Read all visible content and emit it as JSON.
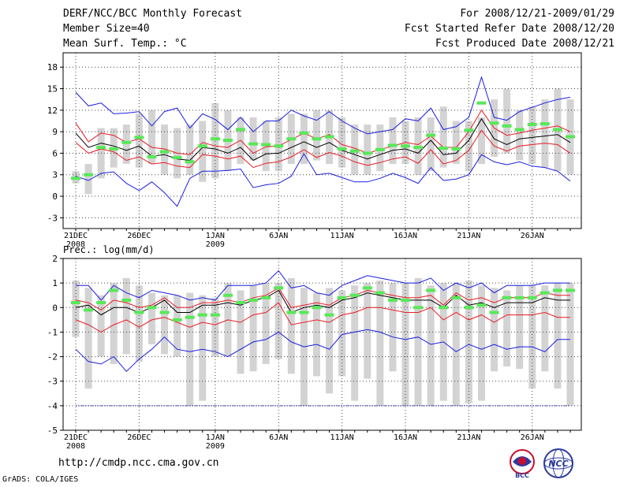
{
  "header": {
    "title": "DERF/NCC/BCC Monthly Forecast",
    "member_size": "Member Size=40",
    "variable": "Mean Surf. Temp.: °C",
    "period": "For 2008/12/21-2009/01/29",
    "started": "Fcst Started Refer Date 2008/12/20",
    "produced": "Fcst Produced Date 2008/12/21"
  },
  "footer": {
    "url": "http://cmdp.ncc.cma.gov.cn",
    "grads": "GrADS: COLA/IGES",
    "logo_left": "BCC",
    "logo_right": "NCC"
  },
  "colors": {
    "box": "#d3d3d3",
    "mean": "#58e858",
    "ensemble_mean": "#000000",
    "spread": "#e81c24",
    "extreme": "#1c1ce0",
    "grid": "#444444"
  },
  "chart_data": [
    {
      "type": "box",
      "title": "Mean Surf. Temp.: °C",
      "days": 40,
      "x_tick_labels": [
        {
          "day": 0,
          "label": "21DEC",
          "sub": "2008"
        },
        {
          "day": 5,
          "label": "26DEC",
          "sub": ""
        },
        {
          "day": 11,
          "label": "1JAN",
          "sub": "2009"
        },
        {
          "day": 16,
          "label": "6JAN",
          "sub": ""
        },
        {
          "day": 21,
          "label": "11JAN",
          "sub": ""
        },
        {
          "day": 26,
          "label": "16JAN",
          "sub": ""
        },
        {
          "day": 31,
          "label": "21JAN",
          "sub": ""
        },
        {
          "day": 36,
          "label": "26JAN",
          "sub": ""
        }
      ],
      "ylim": [
        -4.5,
        20
      ],
      "yticks": [
        -3,
        0,
        3,
        6,
        9,
        12,
        15,
        18
      ],
      "box_low": [
        1.8,
        0.3,
        2.5,
        4.0,
        4.5,
        4.0,
        4.5,
        3.0,
        2.5,
        3.0,
        2.0,
        2.5,
        3.5,
        4.5,
        5.0,
        3.5,
        3.5,
        4.5,
        4.5,
        5.0,
        4.5,
        4.0,
        3.0,
        3.0,
        3.5,
        4.5,
        4.5,
        3.0,
        3.5,
        4.0,
        4.5,
        3.5,
        4.5,
        5.5,
        6.0,
        5.0,
        4.5,
        4.0,
        3.5,
        3.0
      ],
      "box_high": [
        3.5,
        4.5,
        9.5,
        9.5,
        10.0,
        11.5,
        12.0,
        10.0,
        9.5,
        10.0,
        10.5,
        13.0,
        12.0,
        11.0,
        11.0,
        10.5,
        11.0,
        11.5,
        11.5,
        12.0,
        12.0,
        11.0,
        10.0,
        10.0,
        10.0,
        11.0,
        10.5,
        11.0,
        11.0,
        12.5,
        10.5,
        10.5,
        11.0,
        13.5,
        15.0,
        12.0,
        12.5,
        13.5,
        15.0,
        13.5
      ],
      "mean_marker": [
        2.5,
        3.0,
        6.8,
        6.6,
        7.5,
        8.2,
        5.5,
        6.2,
        5.4,
        4.8,
        7.0,
        8.0,
        7.8,
        9.3,
        7.3,
        7.2,
        7.0,
        8.0,
        8.8,
        8.0,
        8.3,
        6.6,
        6.3,
        6.0,
        6.5,
        7.1,
        7.0,
        6.8,
        8.5,
        6.7,
        6.6,
        9.2,
        13.0,
        10.2,
        9.8,
        9.3,
        10.0,
        10.1,
        9.3,
        8.3
      ],
      "ensemble_mean": [
        8.8,
        6.8,
        7.4,
        7.0,
        6.4,
        7.0,
        5.6,
        5.8,
        5.2,
        5.0,
        6.8,
        6.6,
        6.0,
        6.8,
        5.0,
        5.9,
        6.0,
        6.8,
        7.6,
        6.8,
        7.5,
        6.4,
        5.8,
        5.2,
        5.8,
        6.4,
        6.6,
        6.0,
        7.8,
        5.8,
        6.0,
        7.8,
        10.8,
        8.0,
        7.2,
        8.0,
        8.2,
        8.4,
        8.6,
        7.5
      ],
      "upper_spread": [
        10.2,
        7.6,
        8.8,
        8.5,
        7.5,
        8.0,
        6.8,
        6.6,
        6.0,
        5.8,
        7.5,
        7.0,
        6.8,
        7.8,
        6.0,
        6.9,
        7.0,
        7.9,
        8.8,
        8.0,
        8.6,
        7.2,
        6.7,
        6.0,
        6.5,
        7.0,
        7.5,
        7.2,
        8.4,
        6.8,
        6.8,
        9.0,
        12.0,
        9.5,
        8.5,
        8.8,
        9.2,
        9.5,
        9.8,
        9.0
      ],
      "lower_spread": [
        7.5,
        6.0,
        6.6,
        6.2,
        5.0,
        5.5,
        4.5,
        4.7,
        4.2,
        4.0,
        5.8,
        5.6,
        5.2,
        5.6,
        4.0,
        4.6,
        4.8,
        5.5,
        6.5,
        5.4,
        6.1,
        5.6,
        4.8,
        4.3,
        4.7,
        5.2,
        5.5,
        4.6,
        6.5,
        4.5,
        5.0,
        6.4,
        9.2,
        7.0,
        6.3,
        7.0,
        7.2,
        7.4,
        7.2,
        6.0
      ],
      "max": [
        14.5,
        12.6,
        13.0,
        11.5,
        11.6,
        11.8,
        9.8,
        11.8,
        12.3,
        9.5,
        11.5,
        10.7,
        9.3,
        11.0,
        9.0,
        10.5,
        10.5,
        12.0,
        11.2,
        10.6,
        11.8,
        10.5,
        9.5,
        8.7,
        9.0,
        9.3,
        10.8,
        10.5,
        12.3,
        9.3,
        9.7,
        11.0,
        16.6,
        11.0,
        10.6,
        11.8,
        12.4,
        13.0,
        13.5,
        13.8
      ],
      "min": [
        2.8,
        2.2,
        3.2,
        3.4,
        1.8,
        0.8,
        2.0,
        0.5,
        -1.4,
        2.5,
        3.5,
        3.5,
        3.6,
        3.8,
        1.2,
        1.6,
        1.8,
        2.8,
        5.9,
        3.0,
        3.2,
        2.6,
        2.0,
        2.0,
        2.5,
        3.2,
        2.6,
        1.8,
        4.0,
        2.2,
        2.4,
        3.0,
        5.8,
        4.8,
        4.4,
        4.8,
        4.2,
        4.0,
        3.5,
        2.1
      ]
    },
    {
      "type": "box",
      "title": "Prec.: log(mm/d)",
      "days": 40,
      "x_tick_labels": [
        {
          "day": 0,
          "label": "21DEC",
          "sub": "2008"
        },
        {
          "day": 5,
          "label": "26DEC",
          "sub": ""
        },
        {
          "day": 11,
          "label": "1JAN",
          "sub": "2009"
        },
        {
          "day": 16,
          "label": "6JAN",
          "sub": ""
        },
        {
          "day": 21,
          "label": "11JAN",
          "sub": ""
        },
        {
          "day": 26,
          "label": "16JAN",
          "sub": ""
        },
        {
          "day": 31,
          "label": "21JAN",
          "sub": ""
        },
        {
          "day": 36,
          "label": "26JAN",
          "sub": ""
        }
      ],
      "ylim": [
        -5,
        2
      ],
      "yticks": [
        -5,
        -4,
        -3,
        -2,
        -1,
        0,
        1,
        2
      ],
      "box_low": [
        -1.2,
        -3.3,
        -2.0,
        -2.3,
        -1.9,
        -2.2,
        -1.5,
        -1.9,
        -2.0,
        -4.0,
        -3.8,
        -2.0,
        -2.0,
        -2.7,
        -2.6,
        -2.3,
        -2.1,
        -2.7,
        -4.0,
        -2.8,
        -3.5,
        -2.8,
        -3.8,
        -2.9,
        -4.0,
        -2.6,
        -4.0,
        -4.0,
        -4.0,
        -3.8,
        -4.0,
        -3.9,
        -3.8,
        -2.6,
        -2.4,
        -2.5,
        -3.3,
        -2.6,
        -3.3,
        -4.0
      ],
      "box_high": [
        1.1,
        0.8,
        0.5,
        1.0,
        1.2,
        0.9,
        0.6,
        0.5,
        0.5,
        0.6,
        0.5,
        0.4,
        1.0,
        0.7,
        0.9,
        1.0,
        1.0,
        1.2,
        0.8,
        0.6,
        0.8,
        0.7,
        0.9,
        1.0,
        1.1,
        1.0,
        1.0,
        1.2,
        0.9,
        1.0,
        1.0,
        1.1,
        0.9,
        0.8,
        0.7,
        0.9,
        0.9,
        0.9,
        1.0,
        1.0
      ],
      "mean_marker": [
        0.2,
        -0.1,
        0.2,
        0.7,
        0.3,
        -0.2,
        0.0,
        -0.2,
        -0.5,
        -0.4,
        -0.3,
        -0.3,
        0.5,
        0.2,
        0.3,
        0.4,
        0.8,
        -0.2,
        -0.2,
        0.0,
        -0.3,
        0.4,
        0.5,
        0.8,
        0.6,
        0.3,
        0.3,
        0.0,
        0.7,
        0.0,
        0.4,
        0.0,
        0.1,
        -0.2,
        0.4,
        0.4,
        0.4,
        0.6,
        0.7,
        0.7
      ],
      "ensemble_mean": [
        0.0,
        0.1,
        -0.3,
        0.0,
        0.0,
        -0.2,
        0.0,
        0.3,
        -0.2,
        -0.2,
        0.1,
        0.1,
        0.2,
        0.1,
        0.3,
        0.4,
        0.7,
        -0.2,
        0.0,
        0.1,
        0.0,
        0.3,
        0.4,
        0.6,
        0.5,
        0.4,
        0.3,
        0.3,
        0.3,
        0.0,
        0.5,
        0.1,
        0.2,
        0.0,
        0.2,
        0.2,
        0.2,
        0.4,
        0.3,
        0.3
      ],
      "upper_spread": [
        0.3,
        0.2,
        -0.1,
        0.3,
        0.2,
        0.0,
        0.1,
        0.4,
        0.0,
        0.0,
        0.2,
        0.2,
        0.3,
        0.2,
        0.4,
        0.5,
        0.8,
        0.0,
        0.1,
        0.2,
        0.1,
        0.4,
        0.5,
        0.7,
        0.6,
        0.5,
        0.4,
        0.4,
        0.5,
        0.1,
        0.6,
        0.3,
        0.4,
        0.2,
        0.4,
        0.4,
        0.4,
        0.6,
        0.5,
        0.5
      ],
      "lower_spread": [
        -0.5,
        -0.7,
        -1.0,
        -0.7,
        -0.5,
        -0.8,
        -0.5,
        -0.4,
        -0.6,
        -0.8,
        -0.6,
        -0.7,
        -0.5,
        -0.6,
        -0.3,
        -0.2,
        0.2,
        -0.7,
        -0.6,
        -0.5,
        -0.6,
        -0.3,
        -0.2,
        0.0,
        0.0,
        -0.1,
        -0.2,
        -0.2,
        0.0,
        -0.5,
        -0.2,
        -0.5,
        -0.3,
        -0.6,
        -0.3,
        -0.3,
        -0.3,
        -0.2,
        -0.4,
        -0.4
      ],
      "max": [
        0.9,
        0.9,
        0.3,
        0.9,
        0.6,
        0.4,
        0.7,
        0.6,
        0.5,
        0.3,
        0.4,
        0.3,
        0.9,
        0.9,
        0.9,
        1.0,
        1.5,
        0.8,
        0.9,
        0.6,
        0.5,
        0.9,
        1.1,
        1.3,
        1.2,
        1.1,
        1.0,
        1.0,
        1.2,
        0.7,
        1.0,
        0.8,
        1.0,
        0.6,
        0.9,
        0.9,
        0.9,
        1.0,
        1.0,
        1.0
      ],
      "min": [
        -1.7,
        -2.2,
        -2.3,
        -2.0,
        -2.6,
        -2.1,
        -1.7,
        -1.2,
        -1.7,
        -1.8,
        -1.7,
        -1.8,
        -2.0,
        -1.7,
        -1.4,
        -1.3,
        -1.0,
        -1.4,
        -1.6,
        -1.5,
        -1.7,
        -1.1,
        -1.0,
        -0.9,
        -1.0,
        -1.2,
        -1.3,
        -1.2,
        -1.5,
        -1.4,
        -1.8,
        -1.5,
        -1.7,
        -1.5,
        -1.7,
        -1.6,
        -1.6,
        -1.8,
        -1.3,
        -1.3
      ],
      "floor_line": -4.0
    }
  ]
}
